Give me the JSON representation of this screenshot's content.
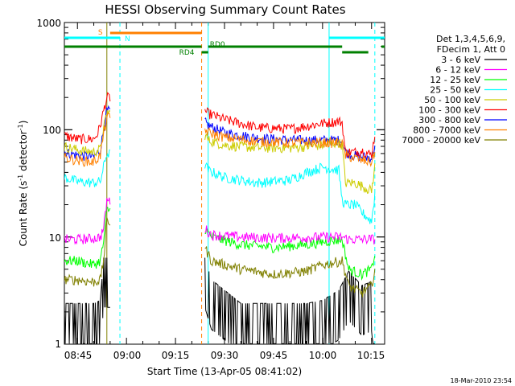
{
  "chart_data": {
    "type": "line",
    "title": "HESSI Observing Summary Count Rates",
    "xlabel": "Start Time (13-Apr-05 08:41:02)",
    "ylabel_main": "Count Rate (s",
    "ylabel_sup1": "-1",
    "ylabel_mid": " detector",
    "ylabel_sup2": "-1",
    "ylabel_end": ")",
    "y_scale": "log",
    "ylim": [
      1,
      1000
    ],
    "xlim": [
      "08:41",
      "10:19"
    ],
    "x_ticks": [
      "08:45",
      "09:00",
      "09:15",
      "09:30",
      "09:45",
      "10:00",
      "10:15"
    ],
    "y_ticks": [
      "1",
      "10",
      "100",
      "1000"
    ],
    "legend": {
      "header1": "Det 1,3,4,5,6,9,",
      "header2": "FDecim 1, Att 0",
      "entries": [
        {
          "label": "3 - 6 keV",
          "color": "#000000"
        },
        {
          "label": "6 - 12 keV",
          "color": "#ff00ff"
        },
        {
          "label": "12 - 25 keV",
          "color": "#00ff00"
        },
        {
          "label": "25 - 50 keV",
          "color": "#00ffff"
        },
        {
          "label": "50 - 100 keV",
          "color": "#cccc00"
        },
        {
          "label": "100 - 300 keV",
          "color": "#ff0000"
        },
        {
          "label": "300 - 800 keV",
          "color": "#0000ff"
        },
        {
          "label": "800 - 7000 keV",
          "color": "#ff8000"
        },
        {
          "label": "7000 - 20000 keV",
          "color": "#808000"
        }
      ]
    },
    "annotations": {
      "saa_label": "S",
      "night_label": "N",
      "rd0_label": "RD0",
      "rd4_label": "RD4"
    },
    "colors": {
      "saa": "#ff8000",
      "night": "#00ffff",
      "decimation": "#008000",
      "saa_vline": "#ff8000",
      "night_vline": "#00ffff",
      "attenuator_vline": "#808000"
    },
    "intervals": {
      "saa": [
        [
          "08:55",
          "09:23"
        ]
      ],
      "night": [
        [
          "08:41",
          "08:58"
        ],
        [
          "10:02",
          "10:19"
        ]
      ],
      "rd0": [
        [
          "08:41",
          "09:23"
        ],
        [
          "09:25",
          "10:06"
        ],
        [
          "10:18",
          "10:19"
        ]
      ],
      "rd4": [
        [
          "09:23",
          "09:25"
        ],
        [
          "10:06",
          "10:14"
        ]
      ]
    },
    "vertical_markers": [
      {
        "time": "08:54",
        "kind": "attenuator"
      },
      {
        "time": "08:58",
        "kind": "night-end"
      },
      {
        "time": "09:23",
        "kind": "saa-end"
      },
      {
        "time": "09:25",
        "kind": "night-start"
      },
      {
        "time": "10:02",
        "kind": "night-start"
      },
      {
        "time": "10:16",
        "kind": "night-end"
      }
    ],
    "data_gap": [
      "08:55",
      "09:24"
    ],
    "series": [
      {
        "name": "3 - 6 keV",
        "color": "#000000",
        "x": [
          "08:41",
          "08:45",
          "08:50",
          "08:52",
          "08:53",
          "09:24",
          "09:26",
          "09:35",
          "09:45",
          "09:55",
          "10:00",
          "10:05",
          "10:08",
          "10:12",
          "10:15",
          "10:16"
        ],
        "y": [
          1.5,
          1.5,
          1.5,
          1.6,
          4,
          4,
          2.5,
          1.5,
          1.5,
          1.5,
          1.6,
          2,
          3,
          2.2,
          2.4,
          1.2
        ]
      },
      {
        "name": "6 - 12 keV",
        "color": "#ff00ff",
        "x": [
          "08:41",
          "08:45",
          "08:50",
          "08:52",
          "08:53",
          "08:54",
          "09:24",
          "09:26",
          "09:35",
          "09:45",
          "09:55",
          "10:00",
          "10:06",
          "10:08",
          "10:12",
          "10:15",
          "10:16"
        ],
        "y": [
          9.5,
          9.5,
          9.7,
          10,
          12,
          22,
          12,
          10.5,
          10,
          9.8,
          9.9,
          10,
          10,
          9.5,
          9.5,
          9.6,
          9.5
        ]
      },
      {
        "name": "12 - 25 keV",
        "color": "#00ff00",
        "x": [
          "08:41",
          "08:45",
          "08:50",
          "08:52",
          "08:53",
          "08:54",
          "09:24",
          "09:26",
          "09:35",
          "09:45",
          "09:55",
          "10:00",
          "10:06",
          "10:08",
          "10:12",
          "10:15",
          "10:16"
        ],
        "y": [
          6,
          6,
          5.5,
          6,
          9,
          18,
          12,
          10,
          8.5,
          8,
          8.5,
          9,
          9.5,
          5,
          4.5,
          5,
          7
        ]
      },
      {
        "name": "25 - 50 keV",
        "color": "#00ffff",
        "x": [
          "08:41",
          "08:45",
          "08:50",
          "08:52",
          "08:53",
          "08:54",
          "09:24",
          "09:25",
          "09:30",
          "09:40",
          "09:50",
          "09:55",
          "10:00",
          "10:05",
          "10:06",
          "10:07",
          "10:10",
          "10:12",
          "10:15",
          "10:16"
        ],
        "y": [
          36,
          33,
          32,
          33,
          45,
          60,
          48,
          42,
          36,
          32,
          34,
          40,
          45,
          42,
          22,
          20,
          20,
          17,
          14,
          25
        ]
      },
      {
        "name": "50 - 100 keV",
        "color": "#cccc00",
        "x": [
          "08:41",
          "08:45",
          "08:50",
          "08:52",
          "08:53",
          "08:54",
          "09:24",
          "09:25",
          "09:30",
          "09:40",
          "09:50",
          "10:00",
          "10:05",
          "10:06",
          "10:07",
          "10:10",
          "10:12",
          "10:15",
          "10:16"
        ],
        "y": [
          70,
          65,
          62,
          66,
          100,
          145,
          90,
          80,
          72,
          68,
          68,
          72,
          76,
          72,
          32,
          32,
          30,
          27,
          45
        ]
      },
      {
        "name": "100 - 300 keV",
        "color": "#ff0000",
        "x": [
          "08:41",
          "08:45",
          "08:50",
          "08:51",
          "08:52",
          "08:53",
          "08:54",
          "09:24",
          "09:25",
          "09:30",
          "09:40",
          "09:50",
          "10:00",
          "10:05",
          "10:06",
          "10:07",
          "10:10",
          "10:12",
          "10:15",
          "10:16"
        ],
        "y": [
          88,
          82,
          82,
          90,
          110,
          150,
          200,
          150,
          142,
          125,
          105,
          102,
          115,
          120,
          117,
          62,
          62,
          64,
          58,
          90
        ]
      },
      {
        "name": "300 - 800 keV",
        "color": "#0000ff",
        "x": [
          "08:41",
          "08:45",
          "08:50",
          "08:52",
          "08:53",
          "08:54",
          "09:24",
          "09:25",
          "09:30",
          "09:40",
          "09:50",
          "10:00",
          "10:05",
          "10:06",
          "10:07",
          "10:10",
          "10:12",
          "10:15",
          "10:16"
        ],
        "y": [
          62,
          58,
          56,
          65,
          100,
          150,
          118,
          110,
          94,
          84,
          80,
          80,
          80,
          78,
          62,
          57,
          56,
          55,
          70
        ]
      },
      {
        "name": "800 - 7000 keV",
        "color": "#ff8000",
        "x": [
          "08:41",
          "08:45",
          "08:50",
          "08:52",
          "08:53",
          "08:54",
          "09:24",
          "09:25",
          "09:30",
          "09:40",
          "09:50",
          "10:00",
          "10:05",
          "10:06",
          "10:07",
          "10:10",
          "10:12",
          "10:15",
          "10:16"
        ],
        "y": [
          55,
          52,
          50,
          58,
          90,
          130,
          100,
          95,
          85,
          78,
          76,
          76,
          76,
          74,
          58,
          54,
          52,
          50,
          62
        ]
      },
      {
        "name": "7000 - 20000 keV",
        "color": "#808000",
        "x": [
          "08:41",
          "08:45",
          "08:50",
          "08:52",
          "08:53",
          "08:54",
          "09:24",
          "09:26",
          "09:35",
          "09:45",
          "09:55",
          "10:00",
          "10:06",
          "10:08",
          "10:12",
          "10:15",
          "10:16"
        ],
        "y": [
          4,
          4,
          3.8,
          4,
          6,
          14,
          8,
          6,
          5,
          4.5,
          4.8,
          5.5,
          6,
          3.5,
          3,
          3.5,
          5
        ]
      }
    ]
  },
  "footer": {
    "timestamp": "18-Mar-2010 23:54"
  }
}
